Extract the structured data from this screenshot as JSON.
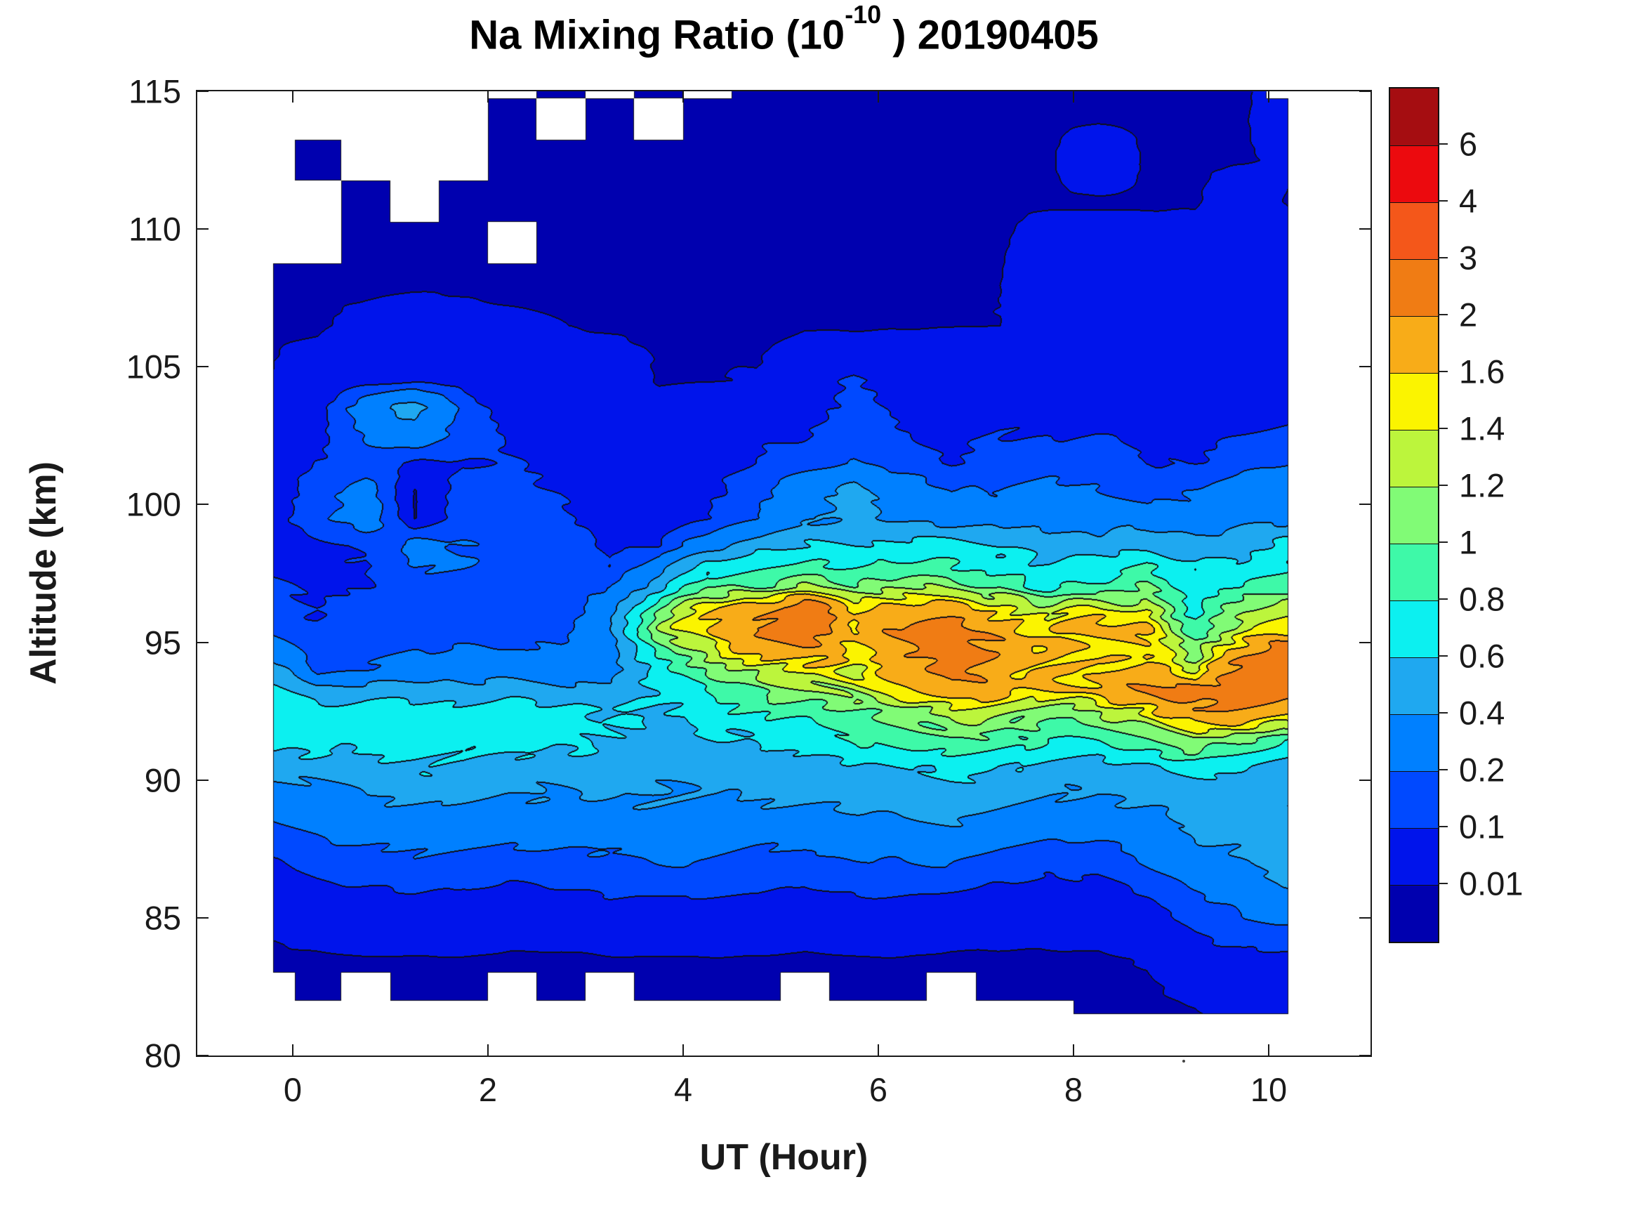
{
  "title": {
    "prefix": "Na Mixing Ratio (10",
    "superscript": "-10",
    "suffix": " ) 20190405"
  },
  "axes": {
    "x_label": "UT (Hour)",
    "y_label": "Altitude (km)",
    "x_tick_values": [
      0,
      2,
      4,
      6,
      8,
      10
    ],
    "x_tick_labels": [
      "0",
      "2",
      "4",
      "6",
      "8",
      "10"
    ],
    "y_tick_values": [
      115,
      110,
      105,
      100,
      95,
      90,
      85,
      80
    ],
    "y_tick_labels": [
      "115",
      "110",
      "105",
      "100",
      "95",
      "90",
      "85",
      "80"
    ]
  },
  "colorbar": {
    "tick_labels": [
      "6",
      "4",
      "3",
      "2",
      "1.6",
      "1.4",
      "1.2",
      "1",
      "0.8",
      "0.6",
      "0.4",
      "0.2",
      "0.1",
      "0.01"
    ],
    "tick_values": [
      6,
      4,
      3,
      2,
      1.6,
      1.4,
      1.2,
      1,
      0.8,
      0.6,
      0.4,
      0.2,
      0.1,
      0.01
    ]
  },
  "chart_data": {
    "type": "filled_contour",
    "title": "Na Mixing Ratio (10^-10 ) 20190405",
    "xlabel": "UT (Hour)",
    "ylabel": "Altitude (km)",
    "xlim": [
      -1,
      11
    ],
    "ylim": [
      80,
      115
    ],
    "grid": false,
    "legend_position": "right-colorbar",
    "units": "10^-10 mixing ratio",
    "levels": [
      0.01,
      0.1,
      0.2,
      0.4,
      0.6,
      0.8,
      1,
      1.2,
      1.4,
      1.6,
      2,
      3,
      4,
      6
    ],
    "band_colors": [
      "#0000AF",
      "#0014EB",
      "#0049FF",
      "#0080FF",
      "#1FA8F0",
      "#0CF0F0",
      "#3EF9A8",
      "#81FB76",
      "#BCF53C",
      "#FBF400",
      "#F8AC18",
      "#F07C14",
      "#F4571A",
      "#EC0A0E",
      "#A50D11"
    ],
    "contour_line_color": "#101018",
    "nan_color": "#ffffff",
    "x_hours": [
      -0.2,
      0.25,
      0.75,
      1.25,
      1.75,
      2.25,
      2.75,
      3.25,
      3.75,
      4.25,
      4.75,
      5.25,
      5.75,
      6.25,
      6.75,
      7.25,
      7.75,
      8.25,
      8.75,
      9.25,
      9.75,
      10.2
    ],
    "altitudes_km": [
      115.5,
      114,
      112.5,
      111,
      109.5,
      108,
      106.5,
      105.5,
      104.5,
      103.5,
      102.5,
      101.5,
      100.5,
      99.5,
      98.5,
      97.75,
      97,
      96.25,
      95.5,
      94.75,
      94,
      93.25,
      92.5,
      91.5,
      90.5,
      89.5,
      88.5,
      87.5,
      86.5,
      85.5,
      84.5,
      83.5,
      82.5,
      81.5
    ],
    "values": [
      [
        null,
        null,
        null,
        null,
        null,
        null,
        0.005,
        null,
        0.005,
        null,
        0.005,
        0.005,
        0.005,
        0.005,
        0.005,
        0.005,
        0.005,
        0.005,
        0.005,
        0.005,
        0.005,
        null
      ],
      [
        null,
        null,
        null,
        null,
        null,
        0.005,
        null,
        0.005,
        null,
        0.005,
        0.005,
        0.005,
        0.005,
        0.005,
        0.005,
        0.005,
        0.005,
        0.005,
        0.005,
        0.005,
        0.005,
        0.05
      ],
      [
        null,
        0.005,
        null,
        null,
        null,
        0.005,
        0.005,
        0.005,
        0.005,
        0.005,
        0.005,
        0.005,
        0.005,
        0.005,
        0.005,
        0.005,
        0.005,
        0.05,
        0.005,
        0.005,
        0.005,
        0.02
      ],
      [
        null,
        null,
        0.005,
        null,
        0.005,
        0.005,
        0.005,
        0.005,
        0.005,
        0.005,
        0.005,
        0.005,
        0.005,
        0.005,
        0.005,
        0.005,
        0.005,
        0.005,
        0.005,
        0.005,
        0.05,
        0.005
      ],
      [
        null,
        null,
        0.005,
        0.005,
        0.005,
        null,
        0.005,
        0.005,
        0.005,
        0.005,
        0.005,
        0.005,
        0.005,
        0.005,
        0.005,
        0.005,
        0.03,
        0.03,
        0.03,
        0.03,
        0.03,
        0.05
      ],
      [
        0.005,
        0.005,
        0.005,
        0.005,
        0.005,
        0.005,
        0.005,
        0.005,
        0.005,
        0.005,
        0.005,
        0.005,
        0.005,
        0.005,
        0.005,
        0.01,
        0.05,
        0.05,
        0.05,
        0.05,
        0.05,
        0.05
      ],
      [
        0.005,
        0.005,
        0.02,
        0.03,
        0.02,
        0.015,
        0.01,
        0.005,
        0.005,
        0.005,
        0.005,
        0.008,
        0.008,
        0.008,
        0.008,
        0.01,
        0.05,
        0.05,
        0.05,
        0.05,
        0.05,
        0.05
      ],
      [
        0.008,
        0.02,
        0.05,
        0.06,
        0.05,
        0.04,
        0.03,
        0.02,
        0.008,
        0.008,
        0.008,
        0.02,
        0.02,
        0.02,
        0.03,
        0.05,
        0.06,
        0.06,
        0.06,
        0.06,
        0.06,
        0.06
      ],
      [
        0.012,
        0.03,
        0.06,
        0.08,
        0.06,
        0.05,
        0.04,
        0.03,
        0.008,
        0.008,
        0.012,
        0.03,
        0.12,
        0.05,
        0.05,
        0.06,
        0.08,
        0.08,
        0.08,
        0.08,
        0.08,
        0.08
      ],
      [
        0.02,
        0.05,
        0.3,
        0.5,
        0.15,
        0.06,
        0.05,
        0.05,
        0.02,
        0.03,
        0.05,
        0.08,
        0.12,
        0.08,
        0.06,
        0.08,
        0.08,
        0.08,
        0.06,
        0.06,
        0.06,
        0.08
      ],
      [
        0.03,
        0.08,
        0.2,
        0.3,
        0.15,
        0.08,
        0.06,
        0.06,
        0.03,
        0.05,
        0.08,
        0.1,
        0.15,
        0.1,
        0.08,
        0.1,
        0.1,
        0.1,
        0.08,
        0.08,
        0.1,
        0.12
      ],
      [
        0.05,
        0.1,
        0.15,
        0.08,
        0.1,
        0.1,
        0.08,
        0.08,
        0.05,
        0.08,
        0.1,
        0.15,
        0.2,
        0.15,
        0.1,
        0.12,
        0.15,
        0.15,
        0.1,
        0.1,
        0.15,
        0.2
      ],
      [
        0.05,
        0.15,
        0.25,
        0.005,
        0.15,
        0.12,
        0.1,
        0.05,
        0.05,
        0.08,
        0.15,
        0.3,
        0.45,
        0.3,
        0.2,
        0.2,
        0.25,
        0.2,
        0.15,
        0.2,
        0.3,
        0.3
      ],
      [
        0.08,
        0.15,
        0.3,
        0.005,
        0.15,
        0.15,
        0.12,
        0.05,
        0.05,
        0.1,
        0.2,
        0.35,
        0.45,
        0.35,
        0.3,
        0.3,
        0.3,
        0.3,
        0.3,
        0.25,
        0.35,
        0.3
      ],
      [
        0.05,
        0.08,
        0.1,
        0.25,
        0.2,
        0.15,
        0.15,
        0.08,
        0.1,
        0.3,
        0.5,
        0.6,
        0.6,
        0.7,
        0.7,
        0.6,
        0.5,
        0.5,
        0.6,
        0.45,
        0.5,
        0.7
      ],
      [
        0.08,
        0.08,
        0.1,
        0.2,
        0.2,
        0.15,
        0.12,
        0.1,
        0.3,
        0.7,
        0.8,
        0.8,
        0.8,
        0.9,
        0.8,
        0.7,
        0.6,
        0.7,
        0.8,
        0.6,
        0.7,
        0.75
      ],
      [
        0.12,
        0.08,
        0.1,
        0.15,
        0.15,
        0.12,
        0.1,
        0.2,
        0.5,
        1.0,
        1.0,
        1.2,
        1.1,
        1.2,
        1.1,
        1.0,
        0.7,
        0.9,
        1.0,
        0.6,
        0.9,
        0.8
      ],
      [
        0.12,
        0.1,
        0.12,
        0.15,
        0.15,
        0.12,
        0.12,
        0.3,
        1.0,
        1.5,
        1.8,
        2.3,
        1.6,
        1.8,
        1.7,
        1.5,
        1.3,
        1.4,
        1.3,
        0.7,
        1.2,
        1.3
      ],
      [
        0.15,
        0.1,
        0.15,
        0.15,
        0.15,
        0.15,
        0.15,
        0.4,
        1.2,
        1.6,
        2.2,
        2.5,
        1.7,
        2.0,
        2.3,
        1.8,
        1.5,
        1.8,
        1.6,
        0.8,
        1.4,
        1.5
      ],
      [
        0.3,
        0.12,
        0.15,
        0.2,
        0.2,
        0.2,
        0.2,
        0.3,
        0.9,
        1.3,
        1.7,
        1.9,
        1.6,
        1.9,
        2.4,
        1.9,
        1.7,
        1.5,
        1.5,
        1.1,
        1.8,
        2.2
      ],
      [
        0.5,
        0.15,
        0.2,
        0.3,
        0.3,
        0.3,
        0.3,
        0.3,
        0.7,
        1.0,
        1.3,
        1.5,
        1.4,
        1.7,
        2.2,
        1.8,
        1.7,
        1.5,
        1.8,
        1.3,
        2.3,
        2.5
      ],
      [
        0.6,
        0.45,
        0.5,
        0.5,
        0.5,
        0.5,
        0.45,
        0.5,
        0.6,
        0.8,
        1.0,
        1.2,
        1.3,
        1.5,
        1.9,
        1.7,
        1.6,
        1.7,
        2.0,
        2.3,
        2.4,
        2.4
      ],
      [
        0.7,
        0.7,
        0.7,
        0.7,
        0.7,
        0.7,
        0.7,
        0.6,
        0.6,
        0.7,
        0.8,
        0.9,
        1.0,
        1.1,
        1.3,
        1.2,
        1.1,
        1.2,
        1.5,
        2.0,
        1.9,
        1.8
      ],
      [
        0.7,
        0.7,
        0.7,
        0.7,
        0.7,
        0.7,
        0.7,
        0.6,
        0.5,
        0.6,
        0.6,
        0.7,
        0.8,
        0.9,
        1.0,
        0.9,
        0.8,
        0.8,
        1.0,
        1.3,
        1.0,
        0.9
      ],
      [
        0.5,
        0.5,
        0.5,
        0.6,
        0.6,
        0.5,
        0.5,
        0.5,
        0.45,
        0.45,
        0.5,
        0.5,
        0.55,
        0.6,
        0.7,
        0.6,
        0.55,
        0.5,
        0.6,
        0.7,
        0.6,
        0.5
      ],
      [
        0.35,
        0.35,
        0.4,
        0.45,
        0.45,
        0.4,
        0.4,
        0.4,
        0.4,
        0.4,
        0.45,
        0.45,
        0.5,
        0.5,
        0.5,
        0.45,
        0.4,
        0.4,
        0.45,
        0.45,
        0.45,
        0.4
      ],
      [
        0.2,
        0.25,
        0.3,
        0.3,
        0.3,
        0.3,
        0.3,
        0.35,
        0.35,
        0.3,
        0.3,
        0.3,
        0.35,
        0.4,
        0.4,
        0.35,
        0.3,
        0.3,
        0.35,
        0.45,
        0.45,
        0.45
      ],
      [
        0.12,
        0.15,
        0.2,
        0.2,
        0.2,
        0.2,
        0.2,
        0.2,
        0.25,
        0.25,
        0.2,
        0.2,
        0.25,
        0.25,
        0.25,
        0.2,
        0.15,
        0.15,
        0.25,
        0.35,
        0.45,
        0.45
      ],
      [
        0.06,
        0.1,
        0.12,
        0.15,
        0.12,
        0.12,
        0.12,
        0.15,
        0.15,
        0.15,
        0.15,
        0.12,
        0.15,
        0.15,
        0.15,
        0.12,
        0.1,
        0.1,
        0.15,
        0.25,
        0.35,
        0.45
      ],
      [
        0.02,
        0.05,
        0.06,
        0.08,
        0.06,
        0.06,
        0.06,
        0.08,
        0.08,
        0.08,
        0.08,
        0.06,
        0.08,
        0.08,
        0.06,
        0.06,
        0.05,
        0.05,
        0.08,
        0.15,
        0.25,
        0.3
      ],
      [
        0.012,
        0.02,
        0.03,
        0.03,
        0.03,
        0.02,
        0.02,
        0.03,
        0.03,
        0.03,
        0.03,
        0.02,
        0.03,
        0.03,
        0.02,
        0.02,
        0.02,
        0.02,
        0.03,
        0.1,
        0.15,
        0.15
      ],
      [
        0.006,
        0.006,
        0.008,
        0.008,
        0.008,
        0.006,
        0.006,
        0.008,
        0.008,
        0.008,
        0.008,
        0.006,
        0.008,
        0.008,
        0.006,
        0.006,
        0.005,
        0.006,
        0.012,
        0.05,
        0.08,
        0.08
      ],
      [
        null,
        0.005,
        null,
        0.005,
        0.005,
        null,
        0.005,
        null,
        0.005,
        0.005,
        0.005,
        null,
        0.005,
        0.005,
        null,
        0.005,
        0.005,
        0.005,
        0.005,
        0.02,
        0.05,
        0.05
      ],
      [
        null,
        null,
        null,
        null,
        null,
        null,
        null,
        null,
        null,
        null,
        null,
        null,
        null,
        null,
        null,
        null,
        null,
        0.005,
        0.005,
        0.008,
        0.02,
        0.02
      ]
    ]
  }
}
